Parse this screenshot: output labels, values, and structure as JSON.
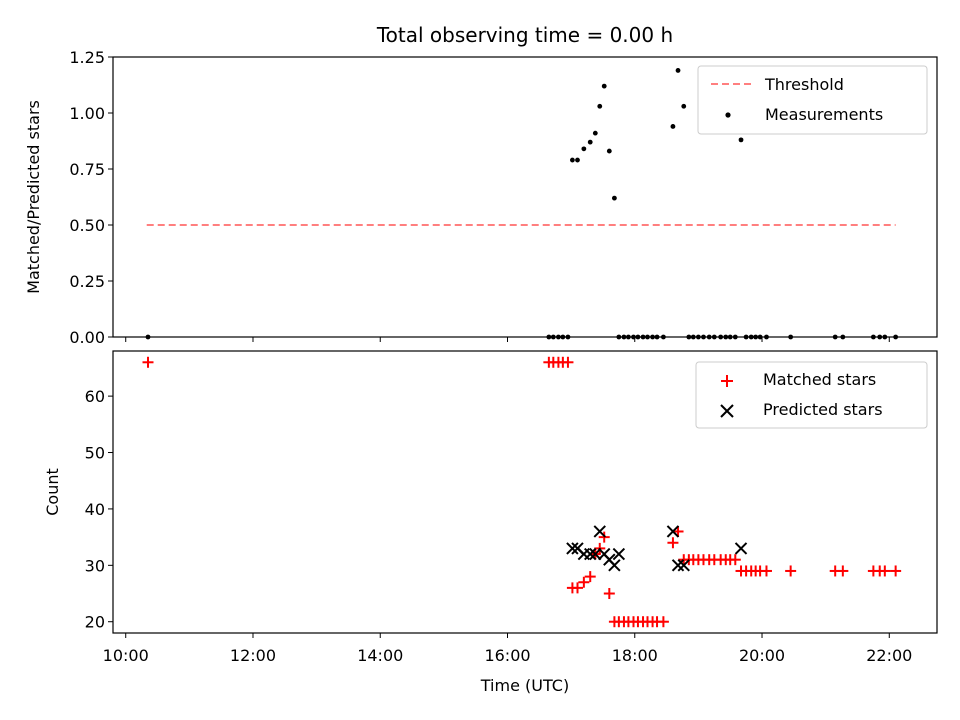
{
  "chart_data": [
    {
      "type": "scatter",
      "title": "Total observing time = 0.00 h",
      "xlabel": "",
      "ylabel": "Matched/Predicted stars",
      "ylim": [
        0,
        1.25
      ],
      "yticks": [
        "0.00",
        "0.25",
        "0.50",
        "0.75",
        "1.00",
        "1.25"
      ],
      "x_unit": "hours (UTC, decimal)",
      "legend": {
        "placement": "top-right",
        "entries": [
          "Threshold",
          "Measurements"
        ]
      },
      "series": [
        {
          "name": "Threshold",
          "style": "dashed-line",
          "color": "#ff7f7f",
          "x": [
            10.33,
            22.1
          ],
          "y": [
            0.5,
            0.5
          ]
        },
        {
          "name": "Measurements",
          "style": "dot",
          "color": "#000000",
          "x": [
            10.35,
            16.65,
            16.72,
            16.8,
            16.87,
            16.95,
            17.02,
            17.1,
            17.2,
            17.3,
            17.38,
            17.45,
            17.52,
            17.6,
            17.68,
            17.75,
            17.83,
            17.9,
            17.98,
            18.05,
            18.13,
            18.2,
            18.28,
            18.35,
            18.45,
            18.6,
            18.68,
            18.77,
            18.85,
            18.92,
            19.0,
            19.08,
            19.17,
            19.25,
            19.35,
            19.43,
            19.5,
            19.58,
            19.67,
            19.75,
            19.83,
            19.9,
            19.97,
            20.07,
            20.45,
            21.15,
            21.27,
            21.75,
            21.85,
            21.93,
            22.1
          ],
          "y": [
            0.0,
            0.0,
            0.0,
            0.0,
            0.0,
            0.0,
            0.79,
            0.79,
            0.84,
            0.87,
            0.91,
            1.03,
            1.12,
            0.83,
            0.62,
            0.0,
            0.0,
            0.0,
            0.0,
            0.0,
            0.0,
            0.0,
            0.0,
            0.0,
            0.0,
            0.94,
            1.19,
            1.03,
            0.0,
            0.0,
            0.0,
            0.0,
            0.0,
            0.0,
            0.0,
            0.0,
            0.0,
            0.0,
            0.88,
            0.0,
            0.0,
            0.0,
            0.0,
            0.0,
            0.0,
            0.0,
            0.0,
            0.0,
            0.0,
            0.0,
            0.0
          ]
        }
      ]
    },
    {
      "type": "scatter",
      "title": "",
      "xlabel": "Time (UTC)",
      "ylabel": "Count",
      "ylim": [
        18,
        68
      ],
      "yticks": [
        "20",
        "30",
        "40",
        "50",
        "60"
      ],
      "xticks": [
        "10:00",
        "12:00",
        "14:00",
        "16:00",
        "18:00",
        "20:00",
        "22:00"
      ],
      "x_unit": "hours (UTC, decimal)",
      "legend": {
        "placement": "top-right",
        "entries": [
          "Matched stars",
          "Predicted stars"
        ]
      },
      "series": [
        {
          "name": "Matched stars",
          "marker": "plus",
          "color": "#ff0000",
          "x": [
            10.35,
            16.65,
            16.72,
            16.8,
            16.87,
            16.95,
            17.02,
            17.1,
            17.2,
            17.3,
            17.38,
            17.45,
            17.52,
            17.6,
            17.68,
            17.75,
            17.83,
            17.9,
            17.98,
            18.05,
            18.13,
            18.2,
            18.28,
            18.35,
            18.45,
            18.6,
            18.68,
            18.77,
            18.85,
            18.92,
            19.0,
            19.08,
            19.17,
            19.25,
            19.35,
            19.43,
            19.5,
            19.58,
            19.67,
            19.75,
            19.83,
            19.9,
            19.97,
            20.07,
            20.45,
            21.15,
            21.27,
            21.75,
            21.85,
            21.93,
            22.1
          ],
          "y": [
            66,
            66,
            66,
            66,
            66,
            66,
            26,
            26,
            27,
            28,
            32,
            33,
            35,
            25,
            20,
            20,
            20,
            20,
            20,
            20,
            20,
            20,
            20,
            20,
            20,
            34,
            36,
            31,
            31,
            31,
            31,
            31,
            31,
            31,
            31,
            31,
            31,
            31,
            29,
            29,
            29,
            29,
            29,
            29,
            29,
            29,
            29,
            29,
            29,
            29,
            29
          ]
        },
        {
          "name": "Predicted stars",
          "marker": "x",
          "color": "#000000",
          "x": [
            17.02,
            17.1,
            17.2,
            17.3,
            17.38,
            17.45,
            17.52,
            17.6,
            17.68,
            17.75,
            18.6,
            18.68,
            18.77,
            19.67
          ],
          "y": [
            33,
            33,
            32,
            32,
            32,
            36,
            32,
            31,
            30,
            32,
            36,
            30,
            30,
            33
          ]
        }
      ]
    }
  ]
}
